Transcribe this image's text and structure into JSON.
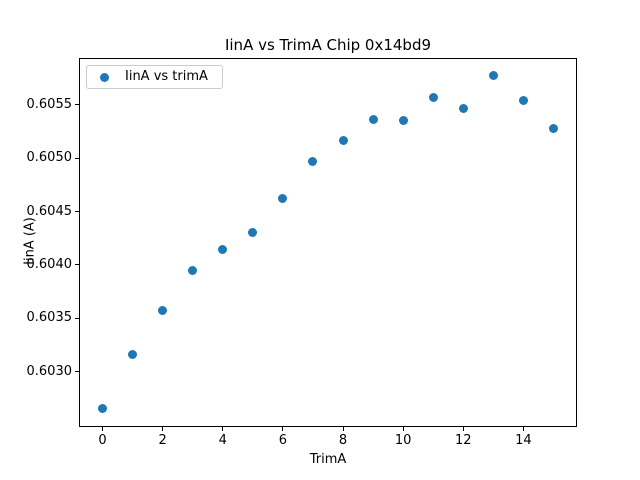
{
  "chart_data": {
    "type": "scatter",
    "title": "IinA vs TrimA Chip 0x14bd9",
    "xlabel": "TrimA",
    "ylabel": "IinA (A)",
    "legend": {
      "position": "upper left",
      "entries": [
        "IinA vs trimA"
      ]
    },
    "x": [
      0,
      1,
      2,
      3,
      4,
      5,
      6,
      7,
      8,
      9,
      10,
      11,
      12,
      13,
      14,
      15
    ],
    "y": [
      0.60265,
      0.60316,
      0.60357,
      0.60395,
      0.60414,
      0.6043,
      0.60462,
      0.60497,
      0.60517,
      0.60536,
      0.60535,
      0.60557,
      0.60547,
      0.60578,
      0.60554,
      0.60528
    ],
    "xlim": [
      -0.75,
      15.75
    ],
    "ylim": [
      0.60249,
      0.60593
    ],
    "xticks": [
      0,
      2,
      4,
      6,
      8,
      10,
      12,
      14
    ],
    "xtick_labels": [
      "0",
      "2",
      "4",
      "6",
      "8",
      "10",
      "12",
      "14"
    ],
    "yticks": [
      0.603,
      0.6035,
      0.604,
      0.6045,
      0.605,
      0.6055
    ],
    "ytick_labels": [
      "0.6030",
      "0.6035",
      "0.6040",
      "0.6045",
      "0.6050",
      "0.6055"
    ],
    "marker_color": "#1f77b4",
    "grid": false
  }
}
